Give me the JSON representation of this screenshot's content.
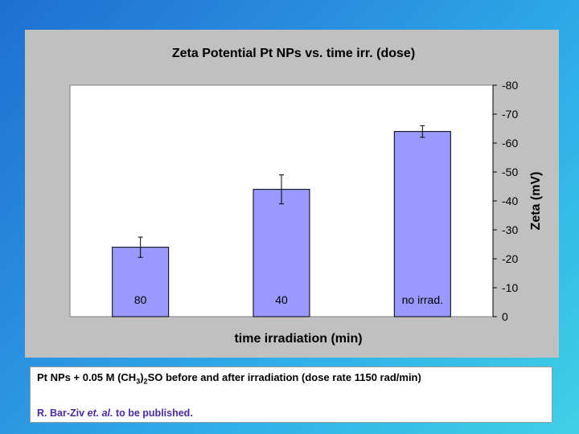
{
  "chart_data": {
    "type": "bar",
    "title": "Zeta Potential Pt NPs vs. time irr. (dose)",
    "xlabel": "time irradiation (min)",
    "ylabel": "Zeta (mV)",
    "categories": [
      "80",
      "40",
      "no irrad."
    ],
    "values": [
      -24,
      -44,
      -64
    ],
    "error": [
      3.5,
      5,
      2
    ],
    "ylim": [
      0,
      -80
    ],
    "yticks": [
      "-80",
      "-70",
      "-60",
      "-50",
      "-40",
      "-30",
      "-20",
      "-10",
      "0"
    ],
    "y_axis_side": "right",
    "bar_color": "#9999ff",
    "plot_background": "#ffffff",
    "labels_inside_bars": true,
    "grid": false
  },
  "caption": {
    "line1_prefix": "Pt NPs + 0.05 M (CH",
    "line1_sub1": "3",
    "line1_mid": ")",
    "line1_sub2": "2",
    "line1_suffix": "SO before and after irradiation (dose rate 1150 rad/min)",
    "ref_author": "R. Bar-Ziv ",
    "ref_etal": "et. al.",
    "ref_rest": " to be published."
  }
}
